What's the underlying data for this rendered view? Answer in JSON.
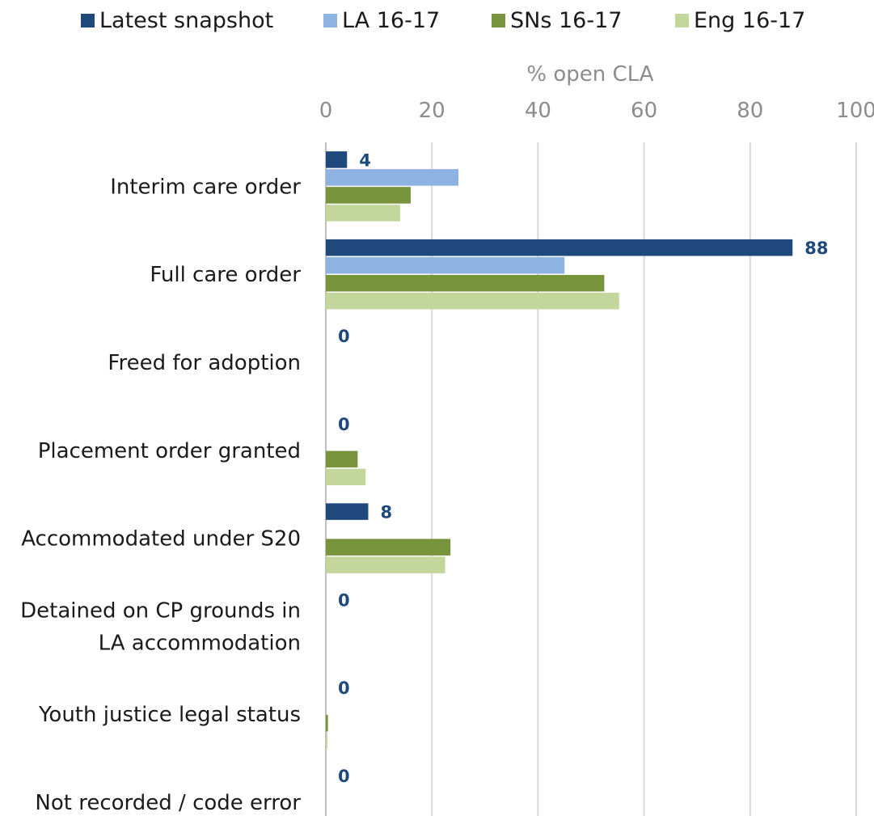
{
  "chart_data": {
    "type": "bar",
    "orientation": "horizontal",
    "xlabel": "% open CLA",
    "xlim": [
      0,
      100
    ],
    "xticks": [
      0,
      20,
      40,
      60,
      80,
      100
    ],
    "grid": true,
    "legend_position": "top",
    "categories": [
      "Interim care order",
      "Full care order",
      "Freed for adoption",
      "Placement order granted",
      "Accommodated under S20",
      [
        "Detained on CP grounds in",
        "LA accommodation"
      ],
      "Youth justice legal status",
      "Not recorded / code error"
    ],
    "series": [
      {
        "name": "Latest snapshot",
        "color": "#1f497d",
        "values": [
          4,
          88,
          0,
          0,
          8,
          0,
          0,
          0
        ],
        "data_labels": [
          "4",
          "88",
          "0",
          "0",
          "8",
          "0",
          "0",
          "0"
        ]
      },
      {
        "name": "LA 16-17",
        "color": "#8db3e2",
        "values": [
          25,
          45,
          0,
          0,
          0,
          0,
          0,
          0
        ]
      },
      {
        "name": "SNs 16-17",
        "color": "#77933c",
        "values": [
          16,
          52.5,
          0,
          6,
          23.5,
          0,
          0.4,
          0
        ]
      },
      {
        "name": "Eng 16-17",
        "color": "#c3d69b",
        "values": [
          14,
          55.3,
          0,
          7.5,
          22.5,
          0,
          0.3,
          0
        ]
      }
    ]
  }
}
